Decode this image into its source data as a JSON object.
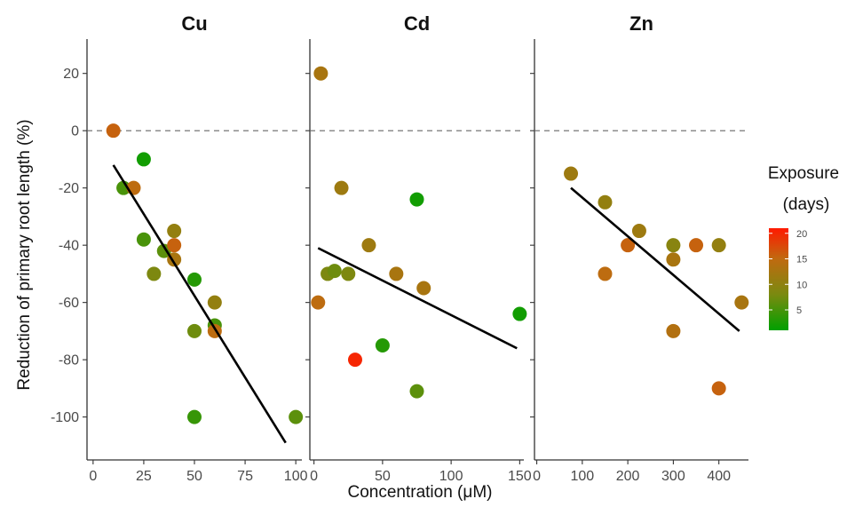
{
  "chart_data": {
    "type": "scatter",
    "facets": true,
    "ylabel": "Reduction of primary root length (%)",
    "xlabel": "Concentration (μM)",
    "ylim": [
      -115,
      32
    ],
    "yticks": [
      20,
      0,
      -20,
      -40,
      -60,
      -80,
      -100
    ],
    "reference_line": {
      "y": 0,
      "style": "dashed"
    },
    "color_scale": {
      "title_line1": "Exposure",
      "title_line2": "(days)",
      "min": 1,
      "max": 21,
      "ticks": [
        20,
        15,
        10,
        5
      ],
      "colors": [
        "#00a000",
        "#7a8a10",
        "#c06a10",
        "#ff1a00"
      ]
    },
    "panels": [
      {
        "title": "Cu",
        "xlim": [
          -3,
          103
        ],
        "xticks": [
          0,
          25,
          50,
          75,
          100
        ],
        "points": [
          {
            "x": 10,
            "y": 0,
            "days": 15
          },
          {
            "x": 25,
            "y": -10,
            "days": 2
          },
          {
            "x": 15,
            "y": -20,
            "days": 5
          },
          {
            "x": 20,
            "y": -20,
            "days": 14
          },
          {
            "x": 25,
            "y": -38,
            "days": 5
          },
          {
            "x": 40,
            "y": -35,
            "days": 10
          },
          {
            "x": 35,
            "y": -42,
            "days": 6
          },
          {
            "x": 40,
            "y": -40,
            "days": 15
          },
          {
            "x": 40,
            "y": -45,
            "days": 12
          },
          {
            "x": 30,
            "y": -50,
            "days": 8
          },
          {
            "x": 50,
            "y": -52,
            "days": 3
          },
          {
            "x": 60,
            "y": -60,
            "days": 10
          },
          {
            "x": 60,
            "y": -68,
            "days": 5
          },
          {
            "x": 60,
            "y": -70,
            "days": 14
          },
          {
            "x": 50,
            "y": -70,
            "days": 7
          },
          {
            "x": 50,
            "y": -100,
            "days": 4
          },
          {
            "x": 100,
            "y": -100,
            "days": 6
          }
        ],
        "fit": {
          "x": [
            10,
            95
          ],
          "y": [
            -12,
            -109
          ]
        }
      },
      {
        "title": "Cd",
        "xlim": [
          -3,
          153
        ],
        "xticks": [
          0,
          50,
          100,
          150
        ],
        "points": [
          {
            "x": 5,
            "y": 20,
            "days": 12
          },
          {
            "x": 20,
            "y": -20,
            "days": 11
          },
          {
            "x": 75,
            "y": -24,
            "days": 2
          },
          {
            "x": 40,
            "y": -40,
            "days": 11
          },
          {
            "x": 10,
            "y": -50,
            "days": 8
          },
          {
            "x": 15,
            "y": -49,
            "days": 7
          },
          {
            "x": 25,
            "y": -50,
            "days": 8
          },
          {
            "x": 60,
            "y": -50,
            "days": 12
          },
          {
            "x": 80,
            "y": -55,
            "days": 12
          },
          {
            "x": 3,
            "y": -60,
            "days": 14
          },
          {
            "x": 150,
            "y": -64,
            "days": 2
          },
          {
            "x": 50,
            "y": -75,
            "days": 3
          },
          {
            "x": 30,
            "y": -80,
            "days": 20
          },
          {
            "x": 75,
            "y": -91,
            "days": 6
          }
        ],
        "fit": {
          "x": [
            3,
            148
          ],
          "y": [
            -41,
            -76
          ]
        }
      },
      {
        "title": "Zn",
        "xlim": [
          -5,
          465
        ],
        "xticks": [
          0,
          100,
          200,
          300,
          400
        ],
        "points": [
          {
            "x": 75,
            "y": -15,
            "days": 11
          },
          {
            "x": 150,
            "y": -25,
            "days": 10
          },
          {
            "x": 225,
            "y": -35,
            "days": 11
          },
          {
            "x": 200,
            "y": -40,
            "days": 15
          },
          {
            "x": 300,
            "y": -40,
            "days": 9
          },
          {
            "x": 350,
            "y": -40,
            "days": 15
          },
          {
            "x": 400,
            "y": -40,
            "days": 10
          },
          {
            "x": 300,
            "y": -45,
            "days": 12
          },
          {
            "x": 150,
            "y": -50,
            "days": 14
          },
          {
            "x": 450,
            "y": -60,
            "days": 12
          },
          {
            "x": 300,
            "y": -70,
            "days": 13
          },
          {
            "x": 400,
            "y": -90,
            "days": 15
          }
        ],
        "fit": {
          "x": [
            75,
            445
          ],
          "y": [
            -20,
            -70
          ]
        }
      }
    ]
  }
}
